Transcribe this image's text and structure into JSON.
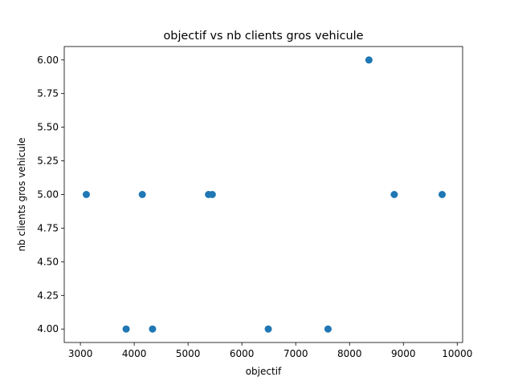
{
  "chart_data": {
    "type": "scatter",
    "title": "objectif   vs   nb clients gros vehicule",
    "xlabel": "objectif",
    "ylabel": "nb clients gros vehicule",
    "xlim": [
      2700,
      10100
    ],
    "ylim": [
      3.9,
      6.1
    ],
    "xticks": [
      3000,
      4000,
      5000,
      6000,
      7000,
      8000,
      9000,
      10000
    ],
    "yticks": [
      4.0,
      4.25,
      4.5,
      4.75,
      5.0,
      5.25,
      5.5,
      5.75,
      6.0
    ],
    "xtick_labels": [
      "3000",
      "4000",
      "5000",
      "6000",
      "7000",
      "8000",
      "9000",
      "10000"
    ],
    "ytick_labels": [
      "4.00",
      "4.25",
      "4.50",
      "4.75",
      "5.00",
      "5.25",
      "5.50",
      "5.75",
      "6.00"
    ],
    "grid": false,
    "marker_color": "#1f77b4",
    "points": [
      {
        "x": 3110,
        "y": 5
      },
      {
        "x": 3850,
        "y": 4
      },
      {
        "x": 4150,
        "y": 5
      },
      {
        "x": 4340,
        "y": 4
      },
      {
        "x": 5380,
        "y": 5
      },
      {
        "x": 5450,
        "y": 5
      },
      {
        "x": 6490,
        "y": 4
      },
      {
        "x": 7600,
        "y": 4
      },
      {
        "x": 8360,
        "y": 6
      },
      {
        "x": 8830,
        "y": 5
      },
      {
        "x": 9720,
        "y": 5
      }
    ]
  }
}
